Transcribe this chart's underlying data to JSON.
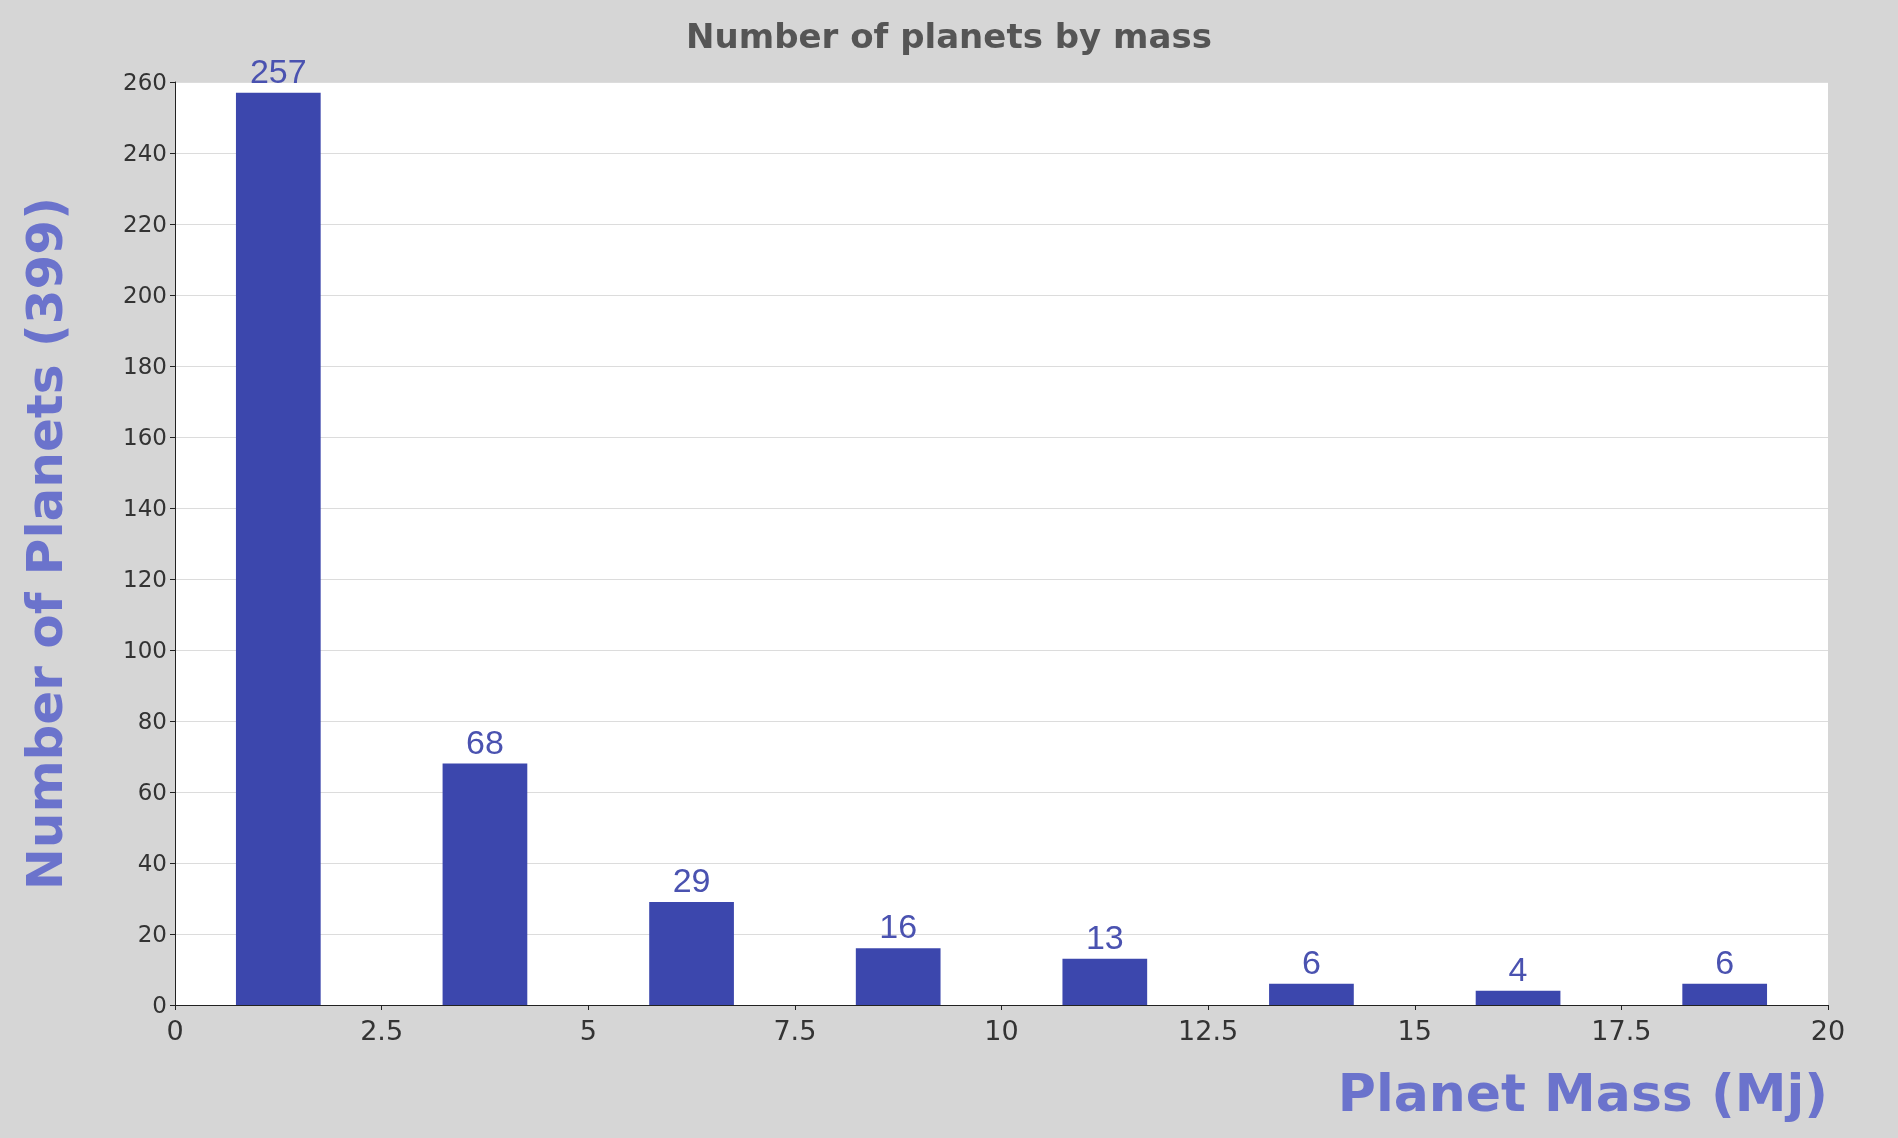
{
  "chart_data": {
    "type": "bar",
    "title": "Number of planets by mass",
    "xlabel": "Planet Mass (Mj)",
    "ylabel": "Number of Planets (399)",
    "x": [
      1.25,
      3.75,
      6.25,
      8.75,
      11.25,
      13.75,
      16.25,
      18.75
    ],
    "values": [
      257,
      68,
      29,
      16,
      13,
      6,
      4,
      6
    ],
    "color": "#3c47ad",
    "xlim": [
      0,
      20
    ],
    "xticks": [
      0,
      2.5,
      5,
      7.5,
      10,
      12.5,
      15,
      17.5,
      20
    ],
    "ylim": [
      0,
      260
    ],
    "yticks": [
      0,
      20,
      40,
      60,
      80,
      100,
      120,
      140,
      160,
      180,
      200,
      220,
      240,
      260
    ],
    "grid": "y",
    "data_labels": true
  }
}
